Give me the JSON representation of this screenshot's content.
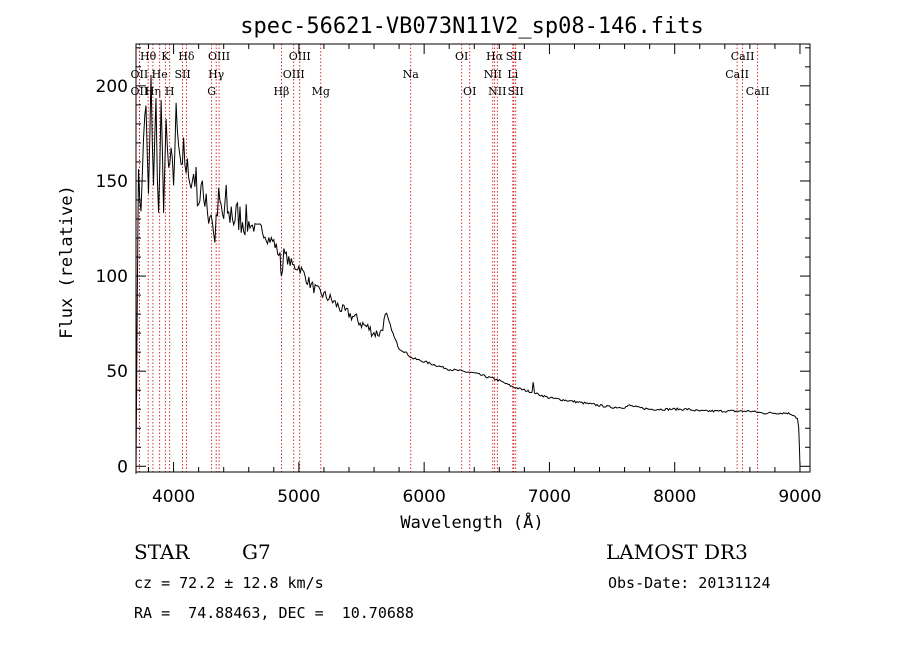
{
  "chart_data": {
    "type": "line",
    "title": "spec-56621-VB073N11V2_sp08-146.fits",
    "xlabel": "Wavelength (Å)",
    "ylabel": "Flux (relative)",
    "xlim": [
      3700,
      9080
    ],
    "ylim": [
      -3,
      222
    ],
    "xticks": [
      4000,
      5000,
      6000,
      7000,
      8000,
      9000
    ],
    "yticks": [
      0,
      50,
      100,
      150,
      200
    ],
    "line_color": "#000000",
    "marker_color": "#cc0000",
    "series": [
      {
        "name": "flux",
        "x": [
          3700,
          3720,
          3740,
          3760,
          3780,
          3800,
          3820,
          3840,
          3860,
          3880,
          3900,
          3920,
          3940,
          3960,
          3980,
          4000,
          4020,
          4040,
          4060,
          4080,
          4100,
          4120,
          4140,
          4160,
          4180,
          4200,
          4220,
          4240,
          4260,
          4280,
          4300,
          4320,
          4340,
          4360,
          4380,
          4400,
          4420,
          4440,
          4460,
          4480,
          4500,
          4550,
          4600,
          4650,
          4700,
          4750,
          4800,
          4850,
          4861,
          4880,
          4920,
          4960,
          5000,
          5050,
          5100,
          5150,
          5200,
          5250,
          5300,
          5350,
          5400,
          5450,
          5500,
          5550,
          5600,
          5650,
          5700,
          5720,
          5740,
          5760,
          5800,
          5850,
          5900,
          6000,
          6100,
          6200,
          6300,
          6400,
          6500,
          6563,
          6600,
          6700,
          6800,
          6860,
          6870,
          6880,
          6900,
          7000,
          7100,
          7200,
          7300,
          7400,
          7500,
          7600,
          7640,
          7700,
          7800,
          7900,
          8000,
          8100,
          8200,
          8300,
          8400,
          8500,
          8600,
          8700,
          8800,
          8900,
          8950,
          8980,
          8990,
          9000
        ],
        "y": [
          5,
          160,
          130,
          175,
          185,
          140,
          200,
          150,
          190,
          130,
          185,
          140,
          175,
          155,
          160,
          150,
          185,
          175,
          160,
          165,
          150,
          160,
          145,
          155,
          150,
          140,
          145,
          140,
          145,
          130,
          135,
          120,
          125,
          140,
          135,
          130,
          140,
          130,
          135,
          130,
          132,
          130,
          128,
          125,
          125,
          120,
          118,
          110,
          100,
          112,
          108,
          105,
          105,
          100,
          95,
          92,
          90,
          88,
          85,
          82,
          80,
          78,
          75,
          73,
          70,
          70,
          80,
          76,
          72,
          68,
          62,
          60,
          57,
          55,
          53,
          51,
          50,
          49,
          47,
          46,
          45,
          42,
          40,
          39,
          44,
          39,
          38,
          36,
          35,
          34,
          33,
          32,
          31,
          31,
          32,
          31,
          30,
          30,
          30,
          30,
          29,
          29,
          29,
          29,
          29,
          28,
          28,
          28,
          27,
          25,
          20,
          0
        ]
      }
    ],
    "spectral_lines": [
      {
        "label": "OII",
        "wavelength": 3727,
        "row": 2
      },
      {
        "label": "Hθ",
        "wavelength": 3797,
        "row": 1
      },
      {
        "label": "OII",
        "wavelength": 3727,
        "row": 3
      },
      {
        "label": "Hη",
        "wavelength": 3835,
        "row": 3
      },
      {
        "label": "He",
        "wavelength": 3889,
        "row": 2
      },
      {
        "label": "K",
        "wavelength": 3934,
        "row": 1
      },
      {
        "label": "SII",
        "wavelength": 4072,
        "row": 2
      },
      {
        "label": "H",
        "wavelength": 3969,
        "row": 3
      },
      {
        "label": "Hδ",
        "wavelength": 4102,
        "row": 1
      },
      {
        "label": "OIII",
        "wavelength": 4363,
        "row": 1
      },
      {
        "label": "Hγ",
        "wavelength": 4340,
        "row": 2
      },
      {
        "label": "G",
        "wavelength": 4304,
        "row": 3
      },
      {
        "label": "Hβ",
        "wavelength": 4861,
        "row": 3
      },
      {
        "label": "OIII",
        "wavelength": 5007,
        "row": 1
      },
      {
        "label": "OIII",
        "wavelength": 4959,
        "row": 2
      },
      {
        "label": "Mg",
        "wavelength": 5175,
        "row": 3
      },
      {
        "label": "Na",
        "wavelength": 5893,
        "row": 2
      },
      {
        "label": "OI",
        "wavelength": 6300,
        "row": 1
      },
      {
        "label": "OI",
        "wavelength": 6364,
        "row": 3
      },
      {
        "label": "Hα",
        "wavelength": 6563,
        "row": 1
      },
      {
        "label": "SII",
        "wavelength": 6716,
        "row": 1
      },
      {
        "label": "NII",
        "wavelength": 6548,
        "row": 2
      },
      {
        "label": "Li",
        "wavelength": 6708,
        "row": 2
      },
      {
        "label": "NII",
        "wavelength": 6584,
        "row": 3
      },
      {
        "label": "SII",
        "wavelength": 6731,
        "row": 3
      },
      {
        "label": "CaII",
        "wavelength": 8542,
        "row": 1
      },
      {
        "label": "CaII",
        "wavelength": 8498,
        "row": 2
      },
      {
        "label": "CaII",
        "wavelength": 8662,
        "row": 3
      }
    ]
  },
  "info": {
    "class": "STAR",
    "subclass": "G7",
    "survey": "LAMOST DR3",
    "cz": "cz = 72.2 ± 12.8 km/s",
    "obs_date": "Obs-Date: 20131124",
    "radec": "RA =  74.88463, DEC =  10.70688"
  }
}
